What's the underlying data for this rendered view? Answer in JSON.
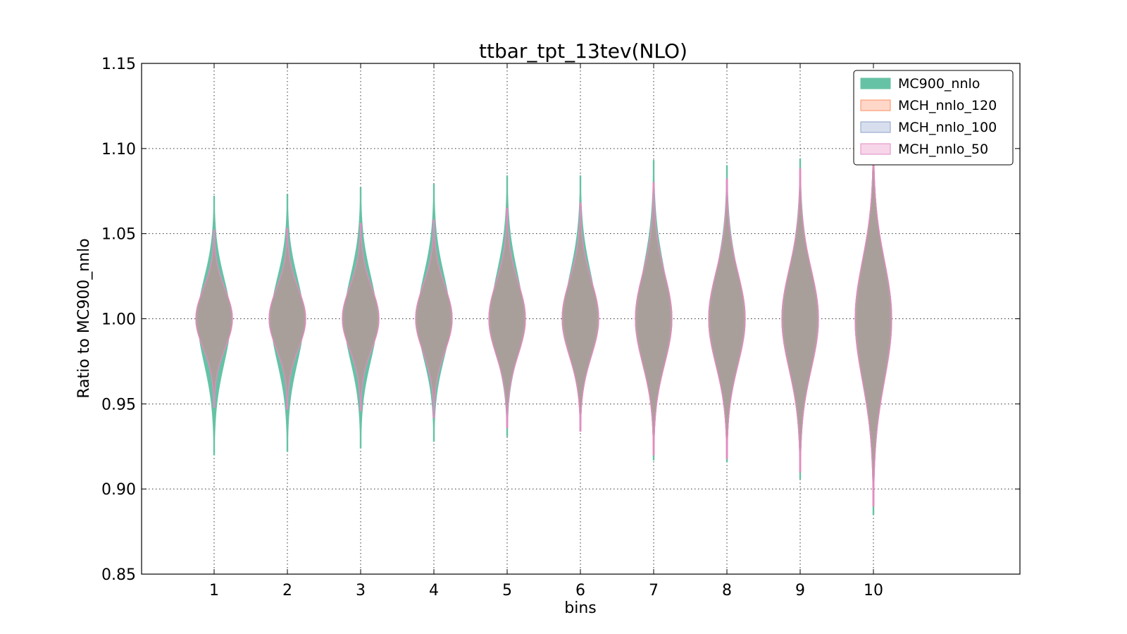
{
  "chart_data": {
    "type": "violin",
    "title": "ttbar_tpt_13tev(NLO)",
    "xlabel": "bins",
    "ylabel": "Ratio to MC900_nnlo",
    "ylim": [
      0.85,
      1.15
    ],
    "yticks": [
      "0.85",
      "0.90",
      "0.95",
      "1.00",
      "1.05",
      "1.10",
      "1.15"
    ],
    "categories": [
      "1",
      "2",
      "3",
      "4",
      "5",
      "6",
      "7",
      "8",
      "9",
      "10"
    ],
    "grid": true,
    "legend_position": "top-right",
    "series": [
      {
        "name": "MC900_nnlo",
        "color": "#66c2a5",
        "min": [
          0.92,
          0.922,
          0.924,
          0.928,
          0.931,
          0.934,
          0.917,
          0.916,
          0.906,
          0.885
        ],
        "max": [
          1.072,
          1.073,
          1.077,
          1.079,
          1.084,
          1.084,
          1.093,
          1.09,
          1.094,
          1.107
        ],
        "median": [
          1.0,
          1.0,
          1.0,
          1.0,
          1.0,
          1.0,
          1.0,
          1.0,
          1.0,
          1.0
        ],
        "half_width": [
          0.22,
          0.22,
          0.22,
          0.22,
          0.22,
          0.22,
          0.22,
          0.22,
          0.22,
          0.22
        ]
      },
      {
        "name": "MCH_nnlo_120",
        "color": "#fc8d62",
        "min": [
          0.948,
          0.947,
          0.946,
          0.942,
          0.936,
          0.934,
          0.92,
          0.918,
          0.91,
          0.89
        ],
        "max": [
          1.052,
          1.053,
          1.056,
          1.058,
          1.065,
          1.068,
          1.08,
          1.082,
          1.088,
          1.103
        ],
        "median": [
          1.0,
          1.0,
          1.0,
          1.0,
          1.0,
          1.0,
          1.0,
          1.0,
          1.0,
          1.0
        ],
        "half_width": [
          0.25,
          0.25,
          0.25,
          0.25,
          0.25,
          0.25,
          0.25,
          0.25,
          0.25,
          0.25
        ]
      },
      {
        "name": "MCH_nnlo_100",
        "color": "#8da0cb",
        "min": [
          0.948,
          0.947,
          0.946,
          0.942,
          0.936,
          0.934,
          0.92,
          0.918,
          0.91,
          0.89
        ],
        "max": [
          1.052,
          1.053,
          1.056,
          1.058,
          1.065,
          1.068,
          1.08,
          1.082,
          1.088,
          1.103
        ],
        "median": [
          1.0,
          1.0,
          1.0,
          1.0,
          1.0,
          1.0,
          1.0,
          1.0,
          1.0,
          1.0
        ],
        "half_width": [
          0.25,
          0.25,
          0.25,
          0.25,
          0.25,
          0.25,
          0.25,
          0.25,
          0.25,
          0.25
        ]
      },
      {
        "name": "MCH_nnlo_50",
        "color": "#e78ac3",
        "min": [
          0.948,
          0.947,
          0.946,
          0.942,
          0.936,
          0.934,
          0.92,
          0.918,
          0.91,
          0.89
        ],
        "max": [
          1.052,
          1.053,
          1.056,
          1.058,
          1.065,
          1.068,
          1.08,
          1.082,
          1.088,
          1.103
        ],
        "median": [
          1.0,
          1.0,
          1.0,
          1.0,
          1.0,
          1.0,
          1.0,
          1.0,
          1.0,
          1.0
        ],
        "half_width": [
          0.25,
          0.25,
          0.25,
          0.25,
          0.25,
          0.25,
          0.25,
          0.25,
          0.25,
          0.25
        ]
      }
    ],
    "overlap_fill_color": "#a89f97"
  }
}
